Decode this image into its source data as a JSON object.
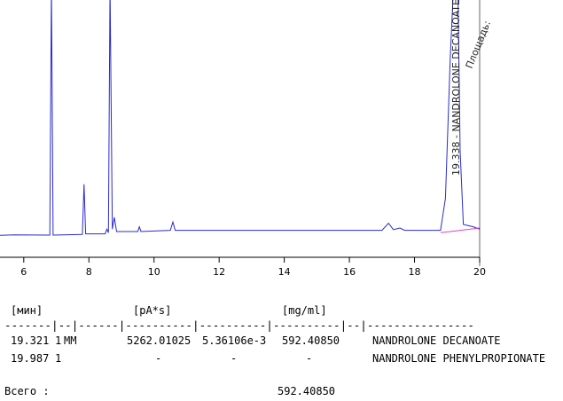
{
  "chart_data": {
    "type": "line",
    "color": "#2a2ad0",
    "x": [
      5.27,
      5.7,
      6.8,
      6.85,
      6.9,
      7.8,
      7.85,
      7.9,
      8.5,
      8.55,
      8.6,
      8.65,
      8.72,
      8.78,
      8.85,
      9.5,
      9.55,
      9.6,
      10.5,
      10.58,
      10.65,
      11,
      12,
      14,
      16,
      17,
      17.2,
      17.35,
      17.55,
      17.7,
      18.8,
      18.95,
      19.1,
      19.2,
      19.33,
      19.4,
      19.5,
      19.8,
      20
    ],
    "values": [
      4.4,
      4.6,
      4.5,
      110,
      4.5,
      4.8,
      26,
      5,
      5,
      7,
      5.5,
      110,
      7,
      12,
      6,
      6,
      8,
      6,
      6.5,
      10,
      6.5,
      6.5,
      6.5,
      6.5,
      6.5,
      6.5,
      9.5,
      6.8,
      7.5,
      6.5,
      6.5,
      20,
      80,
      110,
      110,
      40,
      9,
      8,
      7
    ],
    "baseline": {
      "color": "#e040c0",
      "x": [
        18.8,
        20
      ],
      "values": [
        5.5,
        7.5
      ]
    },
    "xlim": [
      5.27,
      20
    ],
    "ylim": [
      0,
      100
    ],
    "xticks": [
      6,
      8,
      10,
      12,
      14,
      16,
      18,
      20
    ],
    "annotations": [
      "19.338 - NANDROLONE DECANOATE",
      "Площадь: "
    ]
  },
  "report": {
    "units": [
      "[мин]",
      "[pA*s]",
      "[mg/ml]"
    ],
    "separator": "-------|--|------|----------|----------|----------|--|----------------",
    "rows": [
      [
        "19.321",
        "1",
        "MM",
        "5262.01025",
        "5.36106e-3",
        "592.40850",
        "NANDROLONE DECANOATE"
      ],
      [
        "19.987",
        "1",
        "",
        "-",
        "-",
        "-",
        "NANDROLONE PHENYLPROPIONATE"
      ]
    ],
    "total_label": "Всего :",
    "total_value": "592.40850"
  }
}
